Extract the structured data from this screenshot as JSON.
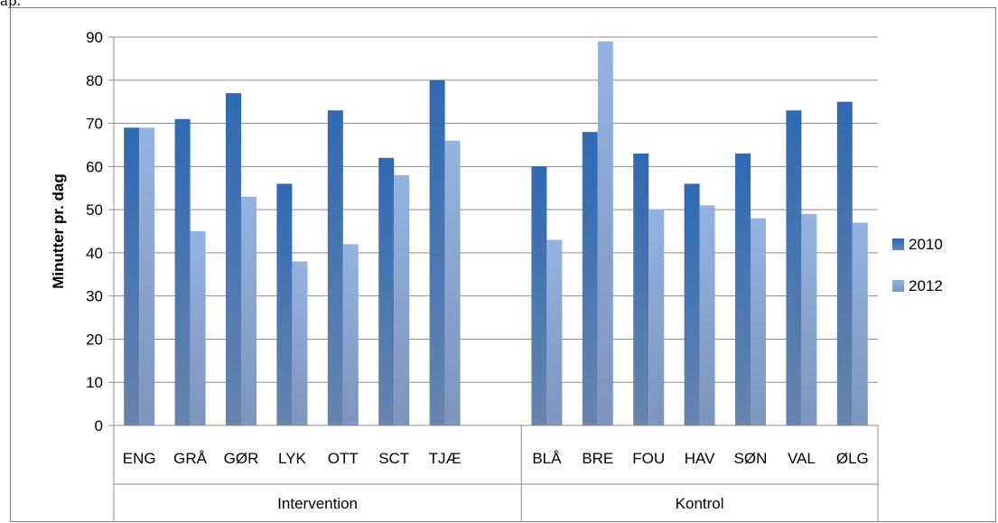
{
  "page": {
    "top_text": "ap."
  },
  "chart_data": {
    "type": "bar",
    "title": "",
    "xlabel": "",
    "ylabel": "Minutter pr. dag",
    "ylim": [
      0,
      90
    ],
    "yticks": [
      0,
      10,
      20,
      30,
      40,
      50,
      60,
      70,
      80,
      90
    ],
    "grid": true,
    "legend_position": "right",
    "groups": [
      {
        "label": "Intervention",
        "categories": [
          "ENG",
          "GRÅ",
          "GØR",
          "LYK",
          "OTT",
          "SCT",
          "TJÆ",
          ""
        ]
      },
      {
        "label": "Kontrol",
        "categories": [
          "BLÅ",
          "BRE",
          "FOU",
          "HAV",
          "SØN",
          "VAL",
          "ØLG"
        ]
      }
    ],
    "categories": [
      "ENG",
      "GRÅ",
      "GØR",
      "LYK",
      "OTT",
      "SCT",
      "TJÆ",
      "",
      "BLÅ",
      "BRE",
      "FOU",
      "HAV",
      "SØN",
      "VAL",
      "ØLG"
    ],
    "series": [
      {
        "name": "2010",
        "color": "#3b6fb4",
        "values": [
          69,
          71,
          77,
          56,
          73,
          62,
          80,
          null,
          60,
          68,
          63,
          56,
          63,
          73,
          75
        ]
      },
      {
        "name": "2012",
        "color": "#8eaedb",
        "values": [
          69,
          45,
          53,
          38,
          42,
          58,
          66,
          null,
          43,
          89,
          50,
          51,
          48,
          49,
          47
        ]
      }
    ]
  }
}
